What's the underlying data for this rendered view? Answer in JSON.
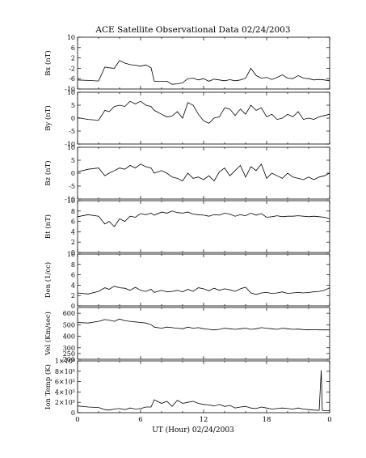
{
  "title": "ACE Satellite Observational Data   02/24/2003",
  "xlabel": "UT (Hour)   02/24/2003",
  "x_ticks": [
    "0",
    "6",
    "12",
    "18",
    "0"
  ],
  "chart_data": [
    {
      "type": "line",
      "ylabel": "Bx (nT)",
      "ylim": [
        -10,
        10
      ],
      "yticks": [
        {
          "v": -10,
          "t": "-10"
        },
        {
          "v": -6,
          "t": "-6"
        },
        {
          "v": -2,
          "t": "-2"
        },
        {
          "v": 2,
          "t": "2"
        },
        {
          "v": 6,
          "t": "6"
        },
        {
          "v": 10,
          "t": "10"
        }
      ],
      "x": [
        0,
        1,
        2,
        2.6,
        3,
        3.5,
        4,
        4.5,
        5,
        5.5,
        6,
        6.5,
        7,
        7.3,
        8,
        8.5,
        9,
        9.5,
        10,
        10.5,
        11,
        11.5,
        12,
        12.5,
        13,
        13.5,
        14,
        14.5,
        15,
        15.5,
        16,
        16.5,
        17,
        17.5,
        18,
        18.5,
        19,
        19.5,
        20,
        20.5,
        21,
        21.5,
        22,
        22.5,
        23,
        23.5,
        24
      ],
      "values": [
        -6.5,
        -6.7,
        -6.9,
        -1.5,
        -1.8,
        -2.0,
        1.0,
        0.0,
        -0.6,
        -0.8,
        -1.2,
        -0.7,
        -1.8,
        -7.0,
        -7.0,
        -7.0,
        -8.2,
        -8.0,
        -7.6,
        -6.0,
        -5.8,
        -6.5,
        -6.0,
        -7.0,
        -6.2,
        -6.5,
        -6.8,
        -6.4,
        -6.8,
        -6.5,
        -5.8,
        -2.0,
        -4.8,
        -5.8,
        -5.5,
        -6.3,
        -5.5,
        -4.5,
        -5.8,
        -6.0,
        -4.8,
        -5.8,
        -6.0,
        -6.5,
        -6.3,
        -6.5,
        -6.8
      ]
    },
    {
      "type": "line",
      "ylabel": "By (nT)",
      "ylim": [
        -10,
        10
      ],
      "yticks": [
        {
          "v": -10,
          "t": "-10"
        },
        {
          "v": -5,
          "t": "-5"
        },
        {
          "v": 0,
          "t": "0"
        },
        {
          "v": 5,
          "t": "5"
        },
        {
          "v": 10,
          "t": "10"
        }
      ],
      "x": [
        0,
        1,
        2,
        2.6,
        3,
        3.5,
        4,
        4.5,
        5,
        5.5,
        6,
        6.5,
        7,
        7.3,
        8,
        8.5,
        9,
        9.5,
        10,
        10.5,
        11,
        11.5,
        12,
        12.5,
        13,
        13.5,
        14,
        14.5,
        15,
        15.5,
        16,
        16.5,
        17,
        17.5,
        18,
        18.5,
        19,
        19.5,
        20,
        20.5,
        21,
        21.5,
        22,
        22.5,
        23,
        23.5,
        24
      ],
      "values": [
        0.2,
        -0.5,
        -0.8,
        3.0,
        2.5,
        4.5,
        5.0,
        4.5,
        6.5,
        5.5,
        6.5,
        5.0,
        4.5,
        3.0,
        1.5,
        0.5,
        0.8,
        2.5,
        0.0,
        6.0,
        5.0,
        1.5,
        -1.0,
        -2.0,
        0.0,
        0.5,
        4.0,
        3.5,
        1.0,
        3.5,
        1.5,
        5.0,
        3.0,
        4.0,
        0.5,
        1.5,
        -0.5,
        0.0,
        1.5,
        0.5,
        2.5,
        -0.5,
        0.0,
        -0.5,
        0.5,
        1.0,
        1.5
      ]
    },
    {
      "type": "line",
      "ylabel": "Bz (nT)",
      "ylim": [
        -10,
        10
      ],
      "yticks": [
        {
          "v": -10,
          "t": "-10"
        },
        {
          "v": -5,
          "t": "-5"
        },
        {
          "v": 0,
          "t": "0"
        },
        {
          "v": 5,
          "t": "5"
        },
        {
          "v": 10,
          "t": "10"
        }
      ],
      "x": [
        0,
        1,
        2,
        2.6,
        3,
        3.5,
        4,
        4.5,
        5,
        5.5,
        6,
        6.5,
        7,
        7.3,
        8,
        8.5,
        9,
        9.5,
        10,
        10.5,
        11,
        11.5,
        12,
        12.5,
        13,
        13.5,
        14,
        14.5,
        15,
        15.5,
        16,
        16.5,
        17,
        17.5,
        18,
        18.5,
        19,
        19.5,
        20,
        20.5,
        21,
        21.5,
        22,
        22.5,
        23,
        23.5,
        24
      ],
      "values": [
        0.5,
        1.5,
        2.0,
        -1.0,
        0.0,
        1.0,
        2.0,
        1.5,
        3.0,
        2.0,
        3.5,
        2.5,
        2.0,
        0.0,
        1.0,
        0.0,
        -1.5,
        -2.0,
        -3.0,
        0.0,
        -2.0,
        -1.5,
        -2.5,
        -1.0,
        -3.0,
        0.5,
        2.0,
        -1.0,
        1.0,
        3.0,
        -1.5,
        2.5,
        1.0,
        3.5,
        -2.0,
        0.0,
        -1.0,
        -2.0,
        0.0,
        -1.5,
        -2.0,
        -2.5,
        -1.5,
        -2.5,
        -1.5,
        -1.0,
        0.0
      ]
    },
    {
      "type": "line",
      "ylabel": "Bt (nT)",
      "ylim": [
        0,
        10
      ],
      "yticks": [
        {
          "v": 0,
          "t": "0"
        },
        {
          "v": 2,
          "t": "2"
        },
        {
          "v": 4,
          "t": "4"
        },
        {
          "v": 6,
          "t": "6"
        },
        {
          "v": 8,
          "t": "8"
        },
        {
          "v": 10,
          "t": "10"
        }
      ],
      "x": [
        0,
        1,
        2,
        2.6,
        3,
        3.5,
        4,
        4.5,
        5,
        5.5,
        6,
        6.5,
        7,
        7.3,
        8,
        8.5,
        9,
        9.5,
        10,
        10.5,
        11,
        11.5,
        12,
        12.5,
        13,
        13.5,
        14,
        14.5,
        15,
        15.5,
        16,
        16.5,
        17,
        17.5,
        18,
        18.5,
        19,
        19.5,
        20,
        20.5,
        21,
        21.5,
        22,
        22.5,
        23,
        23.5,
        24
      ],
      "values": [
        6.9,
        7.3,
        7.0,
        5.5,
        6.0,
        5.0,
        6.5,
        6.0,
        7.0,
        6.8,
        7.5,
        7.3,
        7.6,
        7.2,
        7.8,
        7.6,
        8.0,
        7.7,
        7.6,
        7.8,
        7.4,
        7.3,
        7.2,
        7.0,
        7.3,
        7.2,
        7.6,
        7.4,
        7.0,
        7.3,
        7.1,
        7.6,
        7.2,
        7.5,
        6.8,
        6.9,
        7.1,
        6.9,
        7.0,
        7.0,
        7.1,
        7.0,
        6.9,
        7.0,
        6.9,
        6.8,
        6.5
      ]
    },
    {
      "type": "line",
      "ylabel": "Den (1/cc)",
      "ylim": [
        0,
        10
      ],
      "yticks": [
        {
          "v": 0,
          "t": "0"
        },
        {
          "v": 2,
          "t": "2"
        },
        {
          "v": 4,
          "t": "4"
        },
        {
          "v": 6,
          "t": "6"
        },
        {
          "v": 8,
          "t": "8"
        },
        {
          "v": 10,
          "t": "10"
        }
      ],
      "x": [
        0,
        1,
        2,
        2.6,
        3,
        3.5,
        4,
        4.5,
        5,
        5.5,
        6,
        6.5,
        7,
        7.3,
        8,
        8.5,
        9,
        9.5,
        10,
        10.5,
        11,
        11.5,
        12,
        12.5,
        13,
        13.5,
        14,
        14.5,
        15,
        15.5,
        16,
        16.5,
        17,
        17.5,
        18,
        18.5,
        19,
        19.5,
        20,
        20.5,
        21,
        21.5,
        22,
        22.5,
        23,
        23.5,
        24
      ],
      "values": [
        2.5,
        2.3,
        2.8,
        3.5,
        3.2,
        3.8,
        3.5,
        3.4,
        3.0,
        3.6,
        3.0,
        2.8,
        3.2,
        2.6,
        3.0,
        2.7,
        2.8,
        3.0,
        2.7,
        3.2,
        2.8,
        3.5,
        3.3,
        2.9,
        3.4,
        3.0,
        3.3,
        3.1,
        2.8,
        3.3,
        3.6,
        2.5,
        2.2,
        2.5,
        2.6,
        2.4,
        2.5,
        2.7,
        2.4,
        2.5,
        2.6,
        2.5,
        2.6,
        2.7,
        2.8,
        3.0,
        3.5
      ]
    },
    {
      "type": "line",
      "ylabel": "Vel (Km/sec)",
      "ylim": [
        200,
        650
      ],
      "yticks": [
        {
          "v": 200,
          "t": "200"
        },
        {
          "v": 250,
          "t": "250"
        },
        {
          "v": 300,
          "t": "300"
        },
        {
          "v": 400,
          "t": "400"
        },
        {
          "v": 500,
          "t": "500"
        },
        {
          "v": 600,
          "t": "600"
        }
      ],
      "x": [
        0,
        1,
        2,
        2.6,
        3,
        3.5,
        4,
        4.5,
        5,
        5.5,
        6,
        6.5,
        7,
        7.3,
        8,
        8.5,
        9,
        9.5,
        10,
        10.5,
        11,
        11.5,
        12,
        12.5,
        13,
        13.5,
        14,
        14.5,
        15,
        15.5,
        16,
        16.5,
        17,
        17.5,
        18,
        18.5,
        19,
        19.5,
        20,
        20.5,
        21,
        21.5,
        22,
        22.5,
        23,
        23.5,
        24
      ],
      "values": [
        520,
        515,
        530,
        545,
        540,
        530,
        550,
        535,
        530,
        525,
        520,
        515,
        500,
        480,
        470,
        480,
        475,
        470,
        465,
        480,
        470,
        475,
        465,
        460,
        455,
        460,
        470,
        465,
        460,
        465,
        470,
        460,
        465,
        475,
        470,
        465,
        460,
        470,
        465,
        460,
        462,
        458,
        455,
        457,
        455,
        455,
        455
      ]
    },
    {
      "type": "line",
      "ylabel": "Ion Temp (K)",
      "ylim": [
        0,
        1000000
      ],
      "yticks": [
        {
          "v": 0,
          "t": "0"
        },
        {
          "v": 200000,
          "t": "2×10⁵"
        },
        {
          "v": 400000,
          "t": "4×10⁵"
        },
        {
          "v": 600000,
          "t": "6×10⁵"
        },
        {
          "v": 800000,
          "t": "8×10⁵"
        },
        {
          "v": 1000000,
          "t": "1×10⁶"
        }
      ],
      "x": [
        0,
        1,
        2,
        2.6,
        3,
        3.5,
        4,
        4.5,
        5,
        5.5,
        6,
        6.5,
        7,
        7.3,
        8,
        8.5,
        9,
        9.5,
        10,
        10.5,
        11,
        11.5,
        12,
        12.5,
        13,
        13.5,
        14,
        14.5,
        15,
        15.5,
        16,
        16.5,
        17,
        17.5,
        18,
        18.5,
        19,
        19.5,
        20,
        20.5,
        21,
        21.5,
        22,
        22.5,
        23,
        23.2,
        23.3,
        23.5,
        24
      ],
      "values": [
        130000,
        110000,
        100000,
        60000,
        50000,
        70000,
        80000,
        60000,
        90000,
        70000,
        80000,
        110000,
        110000,
        250000,
        180000,
        220000,
        120000,
        240000,
        180000,
        200000,
        220000,
        180000,
        160000,
        150000,
        130000,
        160000,
        120000,
        140000,
        90000,
        110000,
        120000,
        90000,
        80000,
        110000,
        90000,
        70000,
        80000,
        90000,
        80000,
        70000,
        90000,
        70000,
        60000,
        50000,
        45000,
        820000,
        45000,
        40000,
        40000
      ]
    }
  ]
}
